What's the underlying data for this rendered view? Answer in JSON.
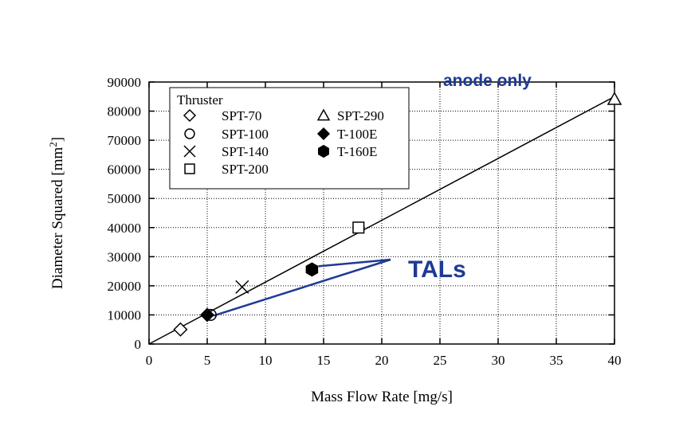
{
  "chart_data": {
    "type": "scatter",
    "xlabel": "Mass Flow Rate [mg/s]",
    "ylabel_main": "Diameter Squared [mm",
    "ylabel_sup": "2",
    "ylabel_end": "]",
    "xlim": [
      0,
      40
    ],
    "ylim": [
      0,
      90000
    ],
    "x_ticks": [
      0,
      5,
      10,
      15,
      20,
      25,
      30,
      35,
      40
    ],
    "y_ticks": [
      0,
      10000,
      20000,
      30000,
      40000,
      50000,
      60000,
      70000,
      80000,
      90000
    ],
    "legend_title": "Thruster",
    "legend_placement": "top-left",
    "series": [
      {
        "name": "SPT-70",
        "marker": "diamond-open",
        "points": [
          [
            2.7,
            5000
          ]
        ]
      },
      {
        "name": "SPT-100",
        "marker": "circle-open",
        "points": [
          [
            5.3,
            10000
          ]
        ]
      },
      {
        "name": "SPT-140",
        "marker": "x",
        "points": [
          [
            8.0,
            19600
          ]
        ]
      },
      {
        "name": "SPT-200",
        "marker": "square-open",
        "points": [
          [
            18.0,
            40000
          ]
        ]
      },
      {
        "name": "SPT-290",
        "marker": "triangle-open",
        "points": [
          [
            40.0,
            84100
          ]
        ]
      },
      {
        "name": "T-100E",
        "marker": "diamond-filled",
        "points": [
          [
            5.0,
            10000
          ]
        ]
      },
      {
        "name": "T-160E",
        "marker": "hexagon-filled",
        "points": [
          [
            14.0,
            25600
          ]
        ]
      }
    ],
    "fit_line": {
      "x": [
        0,
        40
      ],
      "y": [
        0,
        85000
      ]
    },
    "annotations": {
      "anode_only": "anode only",
      "tals": "TALs",
      "color": "#1f3a93"
    }
  }
}
